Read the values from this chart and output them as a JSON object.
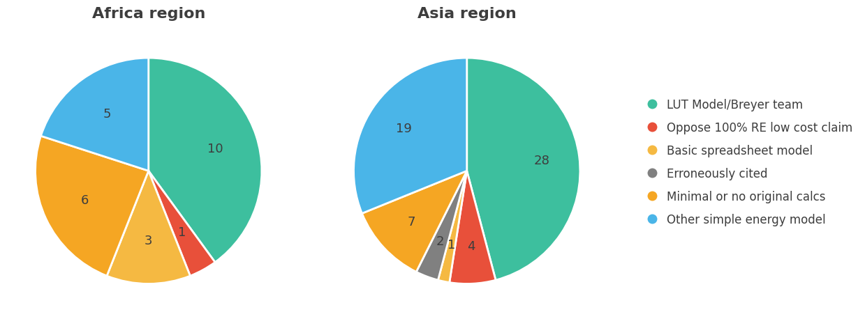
{
  "africa": {
    "title": "Africa region",
    "values": [
      10,
      1,
      3,
      6,
      5
    ],
    "labels": [
      "10",
      "1",
      "3",
      "6",
      "5"
    ],
    "colors": [
      "#3dbf9e",
      "#e8503a",
      "#f5b942",
      "#f5a623",
      "#4ab5e8"
    ],
    "startangle": 90
  },
  "asia": {
    "title": "Asia region",
    "values": [
      28,
      4,
      1,
      2,
      7,
      19
    ],
    "labels": [
      "28",
      "4",
      "1",
      "2",
      "7",
      "19"
    ],
    "colors": [
      "#3dbf9e",
      "#e8503a",
      "#f5b942",
      "#808080",
      "#f5a623",
      "#4ab5e8"
    ],
    "startangle": 90
  },
  "legend_labels": [
    "LUT Model/Breyer team",
    "Oppose 100% RE low cost claim",
    "Basic spreadsheet model",
    "Erroneously cited",
    "Minimal or no original calcs",
    "Other simple energy model"
  ],
  "legend_colors": [
    "#3dbf9e",
    "#e8503a",
    "#f5b942",
    "#808080",
    "#f5a623",
    "#4ab5e8"
  ],
  "label_fontsize": 13,
  "title_fontsize": 16,
  "legend_fontsize": 12,
  "text_color": "#3d3d3d",
  "background_color": "#ffffff"
}
